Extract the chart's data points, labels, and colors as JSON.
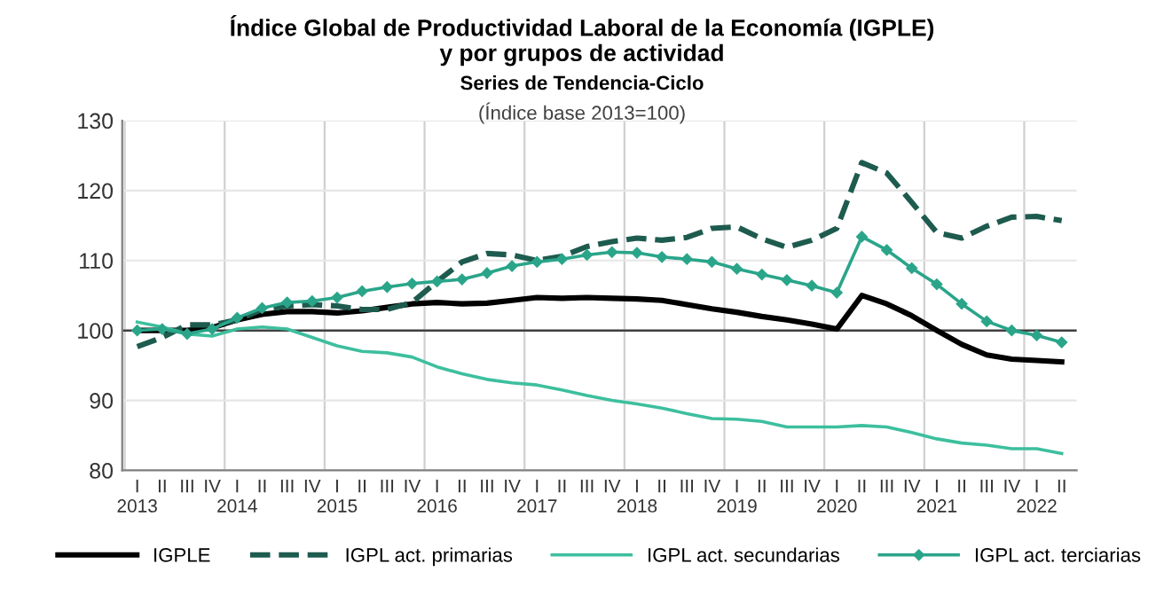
{
  "chart_data": {
    "type": "line",
    "title": "Índice Global de Productividad Laboral de la Economía (IGPLE)\ny por grupos de actividad",
    "subtitle": "Series de Tendencia-Ciclo",
    "annotations": [
      "(Índice base 2013=100)"
    ],
    "categories": [
      "I\n2013",
      "II",
      "III",
      "IV",
      "I\n2014",
      "II",
      "III",
      "IV",
      "I\n2015",
      "II",
      "III",
      "IV",
      "I\n2016",
      "II",
      "III",
      "IV",
      "I\n2017",
      "II",
      "III",
      "IV",
      "I\n2018",
      "II",
      "III",
      "IV",
      "I\n2019",
      "II",
      "III",
      "IV",
      "I\n2020",
      "II",
      "III",
      "IV",
      "I\n2021",
      "II",
      "III",
      "IV",
      "I\n2022",
      "II"
    ],
    "series": [
      {
        "name": "IGPLE",
        "color": "#000000",
        "line_style": "solid",
        "marker": "none",
        "values": [
          100,
          100,
          100,
          100.4,
          101.5,
          102.3,
          102.7,
          102.7,
          102.5,
          102.8,
          103.3,
          103.8,
          104,
          103.8,
          103.9,
          104.3,
          104.7,
          104.6,
          104.7,
          104.6,
          104.5,
          104.3,
          103.7,
          103.1,
          102.6,
          102,
          101.5,
          100.9,
          100.2,
          105,
          103.8,
          102.1,
          100,
          98,
          96.5,
          95.9,
          95.7,
          95.5
        ]
      },
      {
        "name": "IGPL act. primarias",
        "color": "#1e5b4f",
        "line_style": "dashed",
        "marker": "none",
        "values": [
          97.7,
          99,
          100.8,
          100.8,
          101.5,
          103,
          103.5,
          103.7,
          103.5,
          103,
          103,
          104,
          107,
          109.8,
          111,
          110.8,
          110,
          110.6,
          112,
          112.7,
          113.2,
          112.9,
          113.3,
          114.6,
          114.8,
          113.1,
          111.9,
          112.9,
          114.6,
          124,
          122.5,
          118.3,
          114,
          113.2,
          114.9,
          116.2,
          116.3,
          115.7
        ]
      },
      {
        "name": "IGPL act. secundarias",
        "color": "#3dbf9e",
        "line_style": "solid",
        "marker": "none",
        "values": [
          101.2,
          100.5,
          99.5,
          99.2,
          100.2,
          100.5,
          100.2,
          99,
          97.8,
          97,
          96.8,
          96.2,
          94.8,
          93.8,
          93,
          92.5,
          92.2,
          91.5,
          90.7,
          90,
          89.5,
          88.9,
          88.1,
          87.4,
          87.3,
          87,
          86.2,
          86.2,
          86.2,
          86.4,
          86.2,
          85.4,
          84.5,
          83.9,
          83.6,
          83.1,
          83.1,
          82.4
        ]
      },
      {
        "name": "IGPL act. terciarias",
        "color": "#2aa58a",
        "line_style": "solid",
        "marker": "diamond",
        "values": [
          100,
          100.2,
          99.5,
          100.2,
          101.8,
          103.2,
          104,
          104.2,
          104.7,
          105.6,
          106.2,
          106.7,
          107,
          107.3,
          108.2,
          109.2,
          109.8,
          110.2,
          110.8,
          111.2,
          111.1,
          110.5,
          110.2,
          109.8,
          108.8,
          108,
          107.2,
          106.4,
          105.4,
          113.4,
          111.5,
          108.9,
          106.6,
          103.8,
          101.3,
          100,
          99.3,
          98.3
        ]
      }
    ],
    "ylim": [
      80,
      130
    ],
    "yticks": [
      80,
      90,
      100,
      110,
      120,
      130
    ],
    "ref_lines": [
      {
        "axis": "y",
        "value": 100,
        "color": "#404040"
      }
    ],
    "grid": true,
    "legend": "bottom"
  }
}
